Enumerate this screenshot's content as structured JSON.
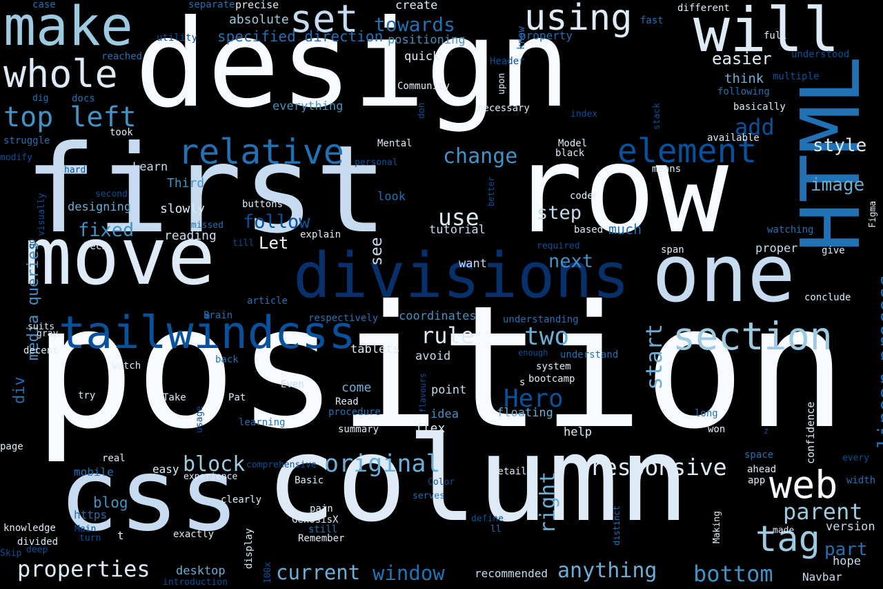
{
  "palette": {
    "c1": "#f7fbff",
    "c2": "#deebf7",
    "c3": "#c6dbef",
    "c4": "#9ecae1",
    "c5": "#6baed6",
    "c6": "#4292c6",
    "c7": "#2171b5",
    "c8": "#08519c",
    "c9": "#08306b"
  },
  "words": [
    {
      "text": "position",
      "color": "c1"
    },
    {
      "text": "design",
      "color": "c1"
    },
    {
      "text": "first",
      "color": "c3"
    },
    {
      "text": "row",
      "color": "c1"
    },
    {
      "text": "column",
      "color": "c2"
    },
    {
      "text": "css",
      "color": "c3"
    },
    {
      "text": "move",
      "color": "c2"
    },
    {
      "text": "one",
      "color": "c3"
    },
    {
      "text": "divisions",
      "color": "c9"
    },
    {
      "text": "make",
      "color": "c4"
    },
    {
      "text": "will",
      "color": "c2"
    },
    {
      "text": "HTML",
      "color": "c7"
    },
    {
      "text": "using",
      "color": "c2"
    },
    {
      "text": "set",
      "color": "c3"
    },
    {
      "text": "tailwindcss",
      "color": "c8"
    },
    {
      "text": "section",
      "color": "c4"
    },
    {
      "text": "web",
      "color": "c1"
    },
    {
      "text": "whole",
      "color": "c2"
    },
    {
      "text": "relative",
      "color": "c7"
    },
    {
      "text": "element",
      "color": "c8"
    },
    {
      "text": "tag",
      "color": "c4"
    },
    {
      "text": "top left",
      "color": "c6"
    },
    {
      "text": "linear process",
      "color": "c7"
    },
    {
      "text": "original",
      "color": "c5"
    },
    {
      "text": "responsive",
      "color": "c2"
    },
    {
      "text": "start",
      "color": "c5"
    },
    {
      "text": "parent",
      "color": "c4"
    },
    {
      "text": "Hero",
      "color": "c8"
    },
    {
      "text": "two",
      "color": "c5"
    },
    {
      "text": "rule",
      "color": "c2"
    },
    {
      "text": "properties",
      "color": "c2"
    },
    {
      "text": "media queries",
      "color": "c6"
    },
    {
      "text": "bottom",
      "color": "c6"
    },
    {
      "text": "anything",
      "color": "c5"
    },
    {
      "text": "window",
      "color": "c7"
    },
    {
      "text": "current",
      "color": "c5"
    },
    {
      "text": "block",
      "color": "c4"
    },
    {
      "text": "right",
      "color": "c5"
    },
    {
      "text": "step",
      "color": "c3"
    },
    {
      "text": "use",
      "color": "c2"
    },
    {
      "text": "follow",
      "color": "c8"
    },
    {
      "text": "fixed",
      "color": "c6"
    },
    {
      "text": "change",
      "color": "c6"
    },
    {
      "text": "style",
      "color": "c2"
    },
    {
      "text": "image",
      "color": "c5"
    },
    {
      "text": "add",
      "color": "c8"
    },
    {
      "text": "towards",
      "color": "c7"
    },
    {
      "text": "specified direction",
      "color": "c7"
    },
    {
      "text": "next",
      "color": "c6"
    },
    {
      "text": "see",
      "color": "c3"
    },
    {
      "text": "Let",
      "color": "c1"
    },
    {
      "text": "div",
      "color": "c7"
    },
    {
      "text": "blog",
      "color": "c6"
    },
    {
      "text": "part",
      "color": "c7"
    },
    {
      "text": "easier",
      "color": "c2"
    },
    {
      "text": "much",
      "color": "c7"
    },
    {
      "text": "think",
      "color": "c5"
    },
    {
      "text": "absolute",
      "color": "c4"
    },
    {
      "text": "positioning",
      "color": "c6"
    },
    {
      "text": "everything",
      "color": "c6"
    },
    {
      "text": "designing",
      "color": "c5"
    },
    {
      "text": "slowly",
      "color": "c2"
    },
    {
      "text": "reading",
      "color": "c3"
    },
    {
      "text": "Third",
      "color": "c6"
    },
    {
      "text": "Learn",
      "color": "c3"
    },
    {
      "text": "desktop",
      "color": "c5"
    },
    {
      "text": "coordinates",
      "color": "c6"
    },
    {
      "text": "tablets",
      "color": "c2"
    },
    {
      "text": "avoid",
      "color": "c3"
    },
    {
      "text": "point",
      "color": "c3"
    },
    {
      "text": "floating",
      "color": "c5"
    },
    {
      "text": "idea",
      "color": "c6"
    },
    {
      "text": "flex",
      "color": "c2"
    },
    {
      "text": "help",
      "color": "c2"
    },
    {
      "text": "come",
      "color": "c5"
    },
    {
      "text": "want",
      "color": "c3"
    },
    {
      "text": "tutorial",
      "color": "c3"
    },
    {
      "text": "proper",
      "color": "c3"
    },
    {
      "text": "version",
      "color": "c3"
    },
    {
      "text": "hope",
      "color": "c3"
    },
    {
      "text": "Navbar",
      "color": "c3"
    },
    {
      "text": "recommended",
      "color": "c3"
    },
    {
      "text": "confidence",
      "color": "c2"
    },
    {
      "text": "create",
      "color": "c2"
    },
    {
      "text": "precise",
      "color": "c2"
    },
    {
      "text": "separate",
      "color": "c7"
    },
    {
      "text": "case",
      "color": "c7"
    },
    {
      "text": "different",
      "color": "c2"
    },
    {
      "text": "full",
      "color": "c2"
    },
    {
      "text": "fast",
      "color": "c7"
    },
    {
      "text": "utility",
      "color": "c8"
    },
    {
      "text": "reached",
      "color": "c7"
    },
    {
      "text": "quick",
      "color": "c2"
    },
    {
      "text": "know",
      "color": "c7"
    },
    {
      "text": "property",
      "color": "c7"
    },
    {
      "text": "understood",
      "color": "c8"
    },
    {
      "text": "Header",
      "color": "c8"
    },
    {
      "text": "multiple",
      "color": "c8"
    },
    {
      "text": "following",
      "color": "c7"
    },
    {
      "text": "basically",
      "color": "c2"
    },
    {
      "text": "dig",
      "color": "c7"
    },
    {
      "text": "docs",
      "color": "c7"
    },
    {
      "text": "Community",
      "color": "c2"
    },
    {
      "text": "upon",
      "color": "c2"
    },
    {
      "text": "don",
      "color": "c8"
    },
    {
      "text": "necessary",
      "color": "c2"
    },
    {
      "text": "index",
      "color": "c8"
    },
    {
      "text": "stack",
      "color": "c8"
    },
    {
      "text": "took",
      "color": "c2"
    },
    {
      "text": "struggle",
      "color": "c7"
    },
    {
      "text": "modify",
      "color": "c8"
    },
    {
      "text": "Mental",
      "color": "c2"
    },
    {
      "text": "Model",
      "color": "c2"
    },
    {
      "text": "black",
      "color": "c2"
    },
    {
      "text": "available",
      "color": "c2"
    },
    {
      "text": "hard",
      "color": "c8"
    },
    {
      "text": "personal",
      "color": "c8"
    },
    {
      "text": "means",
      "color": "c2"
    },
    {
      "text": "second",
      "color": "c8"
    },
    {
      "text": "visually",
      "color": "c8"
    },
    {
      "text": "go",
      "color": "c8"
    },
    {
      "text": "buttons",
      "color": "c2"
    },
    {
      "text": "look",
      "color": "c7"
    },
    {
      "text": "better",
      "color": "c8"
    },
    {
      "text": "code",
      "color": "c2"
    },
    {
      "text": "Figma",
      "color": "c2"
    },
    {
      "text": "watching",
      "color": "c7"
    },
    {
      "text": "based",
      "color": "c2"
    },
    {
      "text": "missed",
      "color": "c7"
    },
    {
      "text": "explain",
      "color": "c2"
    },
    {
      "text": "till",
      "color": "c8"
    },
    {
      "text": "required",
      "color": "c8"
    },
    {
      "text": "span",
      "color": "c2"
    },
    {
      "text": "give",
      "color": "c2"
    },
    {
      "text": "Tech",
      "color": "c2"
    },
    {
      "text": "article",
      "color": "c7"
    },
    {
      "text": "conclude",
      "color": "c2"
    },
    {
      "text": "Brain",
      "color": "c7"
    },
    {
      "text": "respectively",
      "color": "c7"
    },
    {
      "text": "understanding",
      "color": "c7"
    },
    {
      "text": "suits",
      "color": "c2"
    },
    {
      "text": "gray",
      "color": "c2"
    },
    {
      "text": "decent",
      "color": "c2"
    },
    {
      "text": "back",
      "color": "c7"
    },
    {
      "text": "enough",
      "color": "c8"
    },
    {
      "text": "understand",
      "color": "c7"
    },
    {
      "text": "watch",
      "color": "c2"
    },
    {
      "text": "system",
      "color": "c2"
    },
    {
      "text": "s",
      "color": "c2"
    },
    {
      "text": "bootcamp",
      "color": "c2"
    },
    {
      "text": "Even",
      "color": "c3"
    },
    {
      "text": "try",
      "color": "c2"
    },
    {
      "text": "Take",
      "color": "c2"
    },
    {
      "text": "usage",
      "color": "c8"
    },
    {
      "text": "Pat",
      "color": "c2"
    },
    {
      "text": "Read",
      "color": "c2"
    },
    {
      "text": "flavours",
      "color": "c8"
    },
    {
      "text": "procedure",
      "color": "c7"
    },
    {
      "text": "long",
      "color": "c7"
    },
    {
      "text": "learning",
      "color": "c7"
    },
    {
      "text": "page",
      "color": "c2"
    },
    {
      "text": "summary",
      "color": "c2"
    },
    {
      "text": "won",
      "color": "c2"
    },
    {
      "text": "z",
      "color": "c8"
    },
    {
      "text": "every",
      "color": "c8"
    },
    {
      "text": "real",
      "color": "c2"
    },
    {
      "text": "comprehensive",
      "color": "c8"
    },
    {
      "text": "space",
      "color": "c7"
    },
    {
      "text": "mobile",
      "color": "c7"
    },
    {
      "text": "easy",
      "color": "c2"
    },
    {
      "text": "detail",
      "color": "c2"
    },
    {
      "text": "ahead",
      "color": "c2"
    },
    {
      "text": "experience",
      "color": "c2"
    },
    {
      "text": "Basic",
      "color": "c2"
    },
    {
      "text": "app",
      "color": "c2"
    },
    {
      "text": "width",
      "color": "c7"
    },
    {
      "text": "Color",
      "color": "c8"
    },
    {
      "text": "clearly",
      "color": "c2"
    },
    {
      "text": "serves",
      "color": "c7"
    },
    {
      "text": "https",
      "color": "c7"
    },
    {
      "text": "pain",
      "color": "c2"
    },
    {
      "text": "define",
      "color": "c8"
    },
    {
      "text": "Making",
      "color": "c2"
    },
    {
      "text": "made",
      "color": "c2"
    },
    {
      "text": "t",
      "color": "c2"
    },
    {
      "text": "GenosisX",
      "color": "c2"
    },
    {
      "text": "display",
      "color": "c2"
    },
    {
      "text": "knowledge",
      "color": "c2"
    },
    {
      "text": "Main",
      "color": "c8"
    },
    {
      "text": "still",
      "color": "c7"
    },
    {
      "text": "ll",
      "color": "c7"
    },
    {
      "text": "distinct",
      "color": "c7"
    },
    {
      "text": "turn",
      "color": "c8"
    },
    {
      "text": "exactly",
      "color": "c2"
    },
    {
      "text": "divided",
      "color": "c2"
    },
    {
      "text": "Remember",
      "color": "c2"
    },
    {
      "text": "Skip",
      "color": "c8"
    },
    {
      "text": "deep",
      "color": "c8"
    },
    {
      "text": "100x",
      "color": "c8"
    },
    {
      "text": "introduction",
      "color": "c8"
    }
  ]
}
